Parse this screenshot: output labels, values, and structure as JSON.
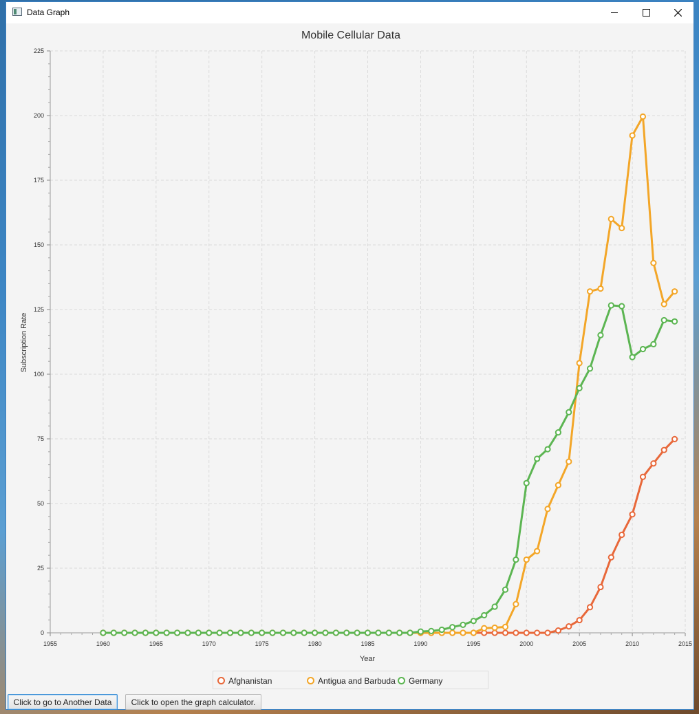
{
  "window": {
    "title": "Data Graph",
    "minimize_icon": "minimize-icon",
    "maximize_icon": "maximize-icon",
    "close_icon": "close-icon"
  },
  "buttons": {
    "another_data": "Click to go to Another Data",
    "calculator": "Click to open the graph calculator."
  },
  "chart_data": {
    "type": "line",
    "title": "Mobile Cellular Data",
    "xlabel": "Year",
    "ylabel": "Subscription Rate",
    "xlim": [
      1955,
      2015
    ],
    "ylim": [
      0,
      225
    ],
    "x_ticks": [
      "1955",
      "1960",
      "1965",
      "1970",
      "1975",
      "1980",
      "1985",
      "1990",
      "1995",
      "2000",
      "2005",
      "2010",
      "2015"
    ],
    "y_ticks": [
      "0",
      "25",
      "50",
      "75",
      "100",
      "125",
      "150",
      "175",
      "200",
      "225"
    ],
    "grid": true,
    "legend_position": "bottom",
    "x": [
      1960,
      1961,
      1962,
      1963,
      1964,
      1965,
      1966,
      1967,
      1968,
      1969,
      1970,
      1971,
      1972,
      1973,
      1974,
      1975,
      1976,
      1977,
      1978,
      1979,
      1980,
      1981,
      1982,
      1983,
      1984,
      1985,
      1986,
      1987,
      1988,
      1989,
      1990,
      1991,
      1992,
      1993,
      1994,
      1995,
      1996,
      1997,
      1998,
      1999,
      2000,
      2001,
      2002,
      2003,
      2004,
      2005,
      2006,
      2007,
      2008,
      2009,
      2010,
      2011,
      2012,
      2013,
      2014
    ],
    "series": [
      {
        "name": "Afghanistan",
        "color": "#e8683a",
        "values": [
          0,
          0,
          0,
          0,
          0,
          0,
          0,
          0,
          0,
          0,
          0,
          0,
          0,
          0,
          0,
          0,
          0,
          0,
          0,
          0,
          0,
          0,
          0,
          0,
          0,
          0,
          0,
          0,
          0,
          0,
          0,
          0,
          0,
          0,
          0,
          0,
          0,
          0,
          0,
          0,
          0,
          0,
          0,
          0.9,
          2.5,
          4.9,
          9.9,
          17.7,
          29.2,
          37.9,
          45.8,
          60.3,
          65.5,
          70.7,
          74.9
        ]
      },
      {
        "name": "Antigua and Barbuda",
        "color": "#f3a628",
        "values": [
          0,
          0,
          0,
          0,
          0,
          0,
          0,
          0,
          0,
          0,
          0,
          0,
          0,
          0,
          0,
          0,
          0,
          0,
          0,
          0,
          0,
          0,
          0,
          0,
          0,
          0,
          0,
          0,
          0,
          0,
          0,
          0,
          0,
          0,
          0,
          0,
          1.8,
          2.0,
          2.3,
          11.1,
          28.3,
          31.6,
          47.9,
          57.1,
          66.2,
          104.3,
          132.0,
          133.1,
          160.0,
          156.5,
          192.3,
          199.6,
          143.0,
          127.1,
          132.0
        ]
      },
      {
        "name": "Germany",
        "color": "#5cb552",
        "values": [
          0,
          0,
          0,
          0,
          0,
          0,
          0,
          0,
          0,
          0,
          0,
          0,
          0,
          0,
          0,
          0,
          0,
          0,
          0,
          0,
          0,
          0,
          0,
          0,
          0,
          0,
          0,
          0,
          0,
          0,
          0.5,
          0.7,
          1.2,
          2.2,
          3.1,
          4.6,
          6.8,
          10.1,
          16.7,
          28.3,
          57.9,
          67.3,
          71.0,
          77.5,
          85.3,
          94.6,
          102.2,
          115.1,
          126.6,
          126.3,
          106.6,
          109.7,
          111.6,
          120.9,
          120.4
        ]
      }
    ]
  }
}
